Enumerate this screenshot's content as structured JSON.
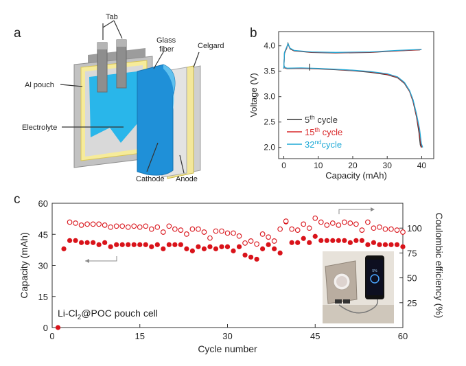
{
  "panels": {
    "a": "a",
    "b": "b",
    "c": "c"
  },
  "schematic": {
    "labels": {
      "tab": "Tab",
      "glass_fiber_1": "Glass",
      "glass_fiber_2": "fiber",
      "celgard": "Celgard",
      "al_pouch": "Al pouch",
      "electrolyte": "Electrolyte",
      "cathode": "Cathode",
      "anode": "Anode"
    },
    "colors": {
      "pouch": "#bdbdbd",
      "frame": "#f5e9a0",
      "electrolyte": "#27b5ea",
      "cathode": "#1d8fd6",
      "tab": "#8c8c8c"
    }
  },
  "chart_data": [
    {
      "id": "b",
      "type": "line",
      "title": "",
      "xlabel": "Capacity (mAh)",
      "ylabel": "Voltage (V)",
      "xlim": [
        -1.5,
        43.5
      ],
      "ylim": [
        1.78,
        4.28
      ],
      "xticks": [
        0,
        10,
        20,
        30,
        40
      ],
      "yticks": [
        2.0,
        2.5,
        3.0,
        3.5,
        4.0
      ],
      "ytick_labels": [
        "2.0",
        "2.5",
        "3.0",
        "3.5",
        "4.0"
      ],
      "legend": [
        {
          "base": "5",
          "sup": "th",
          "text": " cycle",
          "color": "#333333"
        },
        {
          "base": "15",
          "sup": "th",
          "text": " cycle",
          "color": "#d9292b"
        },
        {
          "base": "32",
          "sup": "nd",
          "text": "cycle",
          "color": "#1fa9d6"
        }
      ],
      "series": [
        {
          "name": "5th cycle",
          "color": "#333333",
          "discharge": [
            [
              0,
              3.62
            ],
            [
              0.4,
              3.56
            ],
            [
              1,
              3.55
            ],
            [
              5,
              3.555
            ],
            [
              10,
              3.545
            ],
            [
              15,
              3.53
            ],
            [
              20,
              3.51
            ],
            [
              25,
              3.48
            ],
            [
              30,
              3.43
            ],
            [
              33,
              3.37
            ],
            [
              35,
              3.26
            ],
            [
              36.5,
              3.1
            ],
            [
              37.5,
              2.9
            ],
            [
              38.5,
              2.6
            ],
            [
              39.2,
              2.3
            ],
            [
              39.6,
              2.05
            ],
            [
              39.9,
              2.0
            ]
          ],
          "charge": [
            [
              0,
              3.55
            ],
            [
              0.2,
              3.85
            ],
            [
              0.8,
              3.95
            ],
            [
              1.2,
              4.05
            ],
            [
              1.8,
              3.94
            ],
            [
              3,
              3.9
            ],
            [
              8,
              3.87
            ],
            [
              15,
              3.86
            ],
            [
              25,
              3.87
            ],
            [
              33,
              3.9
            ],
            [
              39.5,
              3.92
            ]
          ]
        },
        {
          "name": "15th cycle",
          "color": "#d9292b",
          "discharge": [
            [
              0,
              3.61
            ],
            [
              0.4,
              3.56
            ],
            [
              1,
              3.555
            ],
            [
              5,
              3.56
            ],
            [
              10,
              3.55
            ],
            [
              15,
              3.535
            ],
            [
              20,
              3.515
            ],
            [
              25,
              3.49
            ],
            [
              30,
              3.44
            ],
            [
              33,
              3.38
            ],
            [
              35,
              3.27
            ],
            [
              36.5,
              3.11
            ],
            [
              37.5,
              2.92
            ],
            [
              38.5,
              2.63
            ],
            [
              39.3,
              2.33
            ],
            [
              39.8,
              2.06
            ],
            [
              40.1,
              2.0
            ]
          ],
          "charge": [
            [
              0,
              3.55
            ],
            [
              0.2,
              3.86
            ],
            [
              0.8,
              3.96
            ],
            [
              1.2,
              4.03
            ],
            [
              1.8,
              3.95
            ],
            [
              3,
              3.905
            ],
            [
              8,
              3.875
            ],
            [
              15,
              3.865
            ],
            [
              25,
              3.875
            ],
            [
              33,
              3.905
            ],
            [
              39.8,
              3.925
            ]
          ]
        },
        {
          "name": "32nd cycle",
          "color": "#1fa9d6",
          "discharge": [
            [
              0,
              3.61
            ],
            [
              0.4,
              3.57
            ],
            [
              1,
              3.56
            ],
            [
              5,
              3.565
            ],
            [
              10,
              3.555
            ],
            [
              15,
              3.54
            ],
            [
              20,
              3.52
            ],
            [
              25,
              3.495
            ],
            [
              30,
              3.45
            ],
            [
              33,
              3.39
            ],
            [
              35,
              3.28
            ],
            [
              36.5,
              3.12
            ],
            [
              37.5,
              2.94
            ],
            [
              38.5,
              2.66
            ],
            [
              39.4,
              2.36
            ],
            [
              39.9,
              2.08
            ],
            [
              40.3,
              2.0
            ]
          ],
          "charge": [
            [
              0,
              3.55
            ],
            [
              0.2,
              3.87
            ],
            [
              0.8,
              3.97
            ],
            [
              1.2,
              4.04
            ],
            [
              1.8,
              3.955
            ],
            [
              3,
              3.91
            ],
            [
              8,
              3.88
            ],
            [
              15,
              3.87
            ],
            [
              25,
              3.88
            ],
            [
              33,
              3.91
            ],
            [
              40,
              3.93
            ]
          ]
        }
      ],
      "annotation_tick": {
        "x": 7.5,
        "y": 3.58
      }
    },
    {
      "id": "c",
      "type": "scatter",
      "title": "",
      "xlabel": "Cycle number",
      "ylabel": "Capacity (mAh)",
      "y2label": "Coulombic efficiency (%)",
      "xlim": [
        0,
        60
      ],
      "ylim": [
        0,
        60
      ],
      "y2lim": [
        0,
        125
      ],
      "xticks": [
        0,
        15,
        30,
        45,
        60
      ],
      "yticks": [
        0,
        15,
        30,
        45,
        60
      ],
      "y2ticks": [
        25,
        50,
        75,
        100
      ],
      "point_color": "#d9131a",
      "arrow_color": "#8a8a8a",
      "annotation": {
        "base": "Li-Cl",
        "sub": "2",
        "rest": "@POC pouch cell"
      },
      "x": [
        1,
        2,
        3,
        4,
        5,
        6,
        7,
        8,
        9,
        10,
        11,
        12,
        13,
        14,
        15,
        16,
        17,
        18,
        19,
        20,
        21,
        22,
        23,
        24,
        25,
        26,
        27,
        28,
        29,
        30,
        31,
        32,
        33,
        34,
        35,
        36,
        37,
        38,
        39,
        40,
        41,
        42,
        43,
        44,
        45,
        46,
        47,
        48,
        49,
        50,
        51,
        52,
        53,
        54,
        55,
        56,
        57,
        58,
        59,
        60
      ],
      "capacity": [
        0,
        38,
        42,
        42,
        41,
        41,
        41,
        40,
        41,
        39,
        40,
        40,
        40,
        40,
        40,
        40,
        39,
        40,
        38,
        40,
        40,
        40,
        38,
        37,
        39,
        38,
        39,
        38,
        39,
        39,
        37,
        39,
        35,
        34,
        33,
        38,
        40,
        38,
        36,
        51,
        41,
        41,
        43,
        41,
        44,
        42,
        42,
        42,
        42,
        42,
        41,
        42,
        42,
        40,
        41,
        40,
        40,
        40,
        40,
        39
      ],
      "efficiency": [
        null,
        null,
        106,
        105,
        103,
        104,
        104,
        104,
        103,
        101,
        102,
        102,
        101,
        102,
        101,
        102,
        99,
        101,
        96,
        102,
        99,
        98,
        94,
        99,
        99,
        96,
        90,
        97,
        97,
        95,
        95,
        92,
        85,
        87,
        84,
        94,
        91,
        87,
        99,
        107,
        99,
        98,
        104,
        100,
        110,
        106,
        103,
        105,
        103,
        106,
        105,
        104,
        98,
        106,
        100,
        101,
        99,
        99,
        98,
        96
      ],
      "axis_tick_labels": {
        "x": [
          "0",
          "15",
          "30",
          "45",
          "60"
        ],
        "y": [
          "0",
          "15",
          "30",
          "45",
          "60"
        ],
        "y2": [
          "25",
          "50",
          "75",
          "100"
        ]
      }
    }
  ],
  "photo": {
    "screen_text": "5%",
    "logo_text": ""
  }
}
